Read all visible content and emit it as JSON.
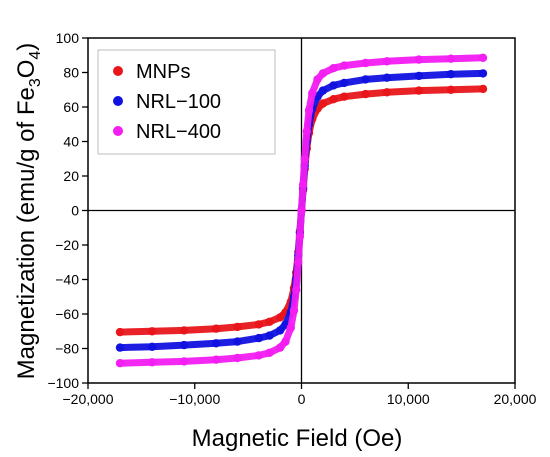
{
  "chart_data": {
    "type": "scatter",
    "title": "",
    "xlabel": "Magnetic Field (Oe)",
    "ylabel": {
      "prefix": "Magnetization (emu/g of Fe",
      "sub1": "3",
      "mid": "O",
      "sub2": "4",
      "suffix": ")"
    },
    "xlim": [
      -20000,
      20000
    ],
    "ylim": [
      -100,
      100
    ],
    "x_ticks": [
      -20000,
      -10000,
      0,
      10000,
      20000
    ],
    "x_tick_labels": [
      "−20,000",
      "−10,000",
      "0",
      "10,000",
      "20,000"
    ],
    "y_ticks": [
      -100,
      -80,
      -60,
      -40,
      -20,
      0,
      20,
      40,
      60,
      80,
      100
    ],
    "y_tick_labels": [
      "−100",
      "−80",
      "−60",
      "−40",
      "−20",
      "0",
      "20",
      "40",
      "60",
      "80",
      "100"
    ],
    "zero_lines": true,
    "grid": false,
    "legend_position": "top-left",
    "series": [
      {
        "name": "MNPs",
        "color": "#e8161b",
        "x": [
          -17000,
          -14000,
          -11000,
          -8000,
          -6000,
          -4000,
          -3000,
          -2000,
          -1500,
          -1000,
          -700,
          -500,
          -300,
          -150,
          0,
          150,
          300,
          500,
          700,
          1000,
          1500,
          2000,
          3000,
          4000,
          6000,
          8000,
          11000,
          14000,
          17000
        ],
        "y": [
          -70.5,
          -70,
          -69.5,
          -68.5,
          -67.5,
          -66,
          -64.5,
          -62,
          -59,
          -53,
          -45,
          -36,
          -24,
          -12,
          0,
          12,
          24,
          36,
          45,
          53,
          59,
          62,
          64.5,
          66,
          67.5,
          68.5,
          69.5,
          70,
          70.5
        ]
      },
      {
        "name": "NRL−100",
        "color": "#1212e0",
        "x": [
          -17000,
          -14000,
          -11000,
          -8000,
          -6000,
          -4000,
          -3000,
          -2000,
          -1500,
          -1000,
          -700,
          -500,
          -300,
          -150,
          0,
          150,
          300,
          500,
          700,
          1000,
          1500,
          2000,
          3000,
          4000,
          6000,
          8000,
          11000,
          14000,
          17000
        ],
        "y": [
          -79.5,
          -79,
          -78,
          -77,
          -76,
          -74,
          -72.5,
          -69.5,
          -66,
          -59,
          -50,
          -40,
          -26,
          -13,
          0,
          13,
          26,
          40,
          50,
          59,
          66,
          69.5,
          72.5,
          74,
          76,
          77,
          78,
          79,
          79.5
        ]
      },
      {
        "name": "NRL−400",
        "color": "#f21ef2",
        "x": [
          -17000,
          -14000,
          -11000,
          -8000,
          -6000,
          -4000,
          -3000,
          -2000,
          -1500,
          -1000,
          -700,
          -500,
          -300,
          -150,
          0,
          150,
          300,
          500,
          700,
          1000,
          1500,
          2000,
          3000,
          4000,
          6000,
          8000,
          11000,
          14000,
          17000
        ],
        "y": [
          -88.5,
          -88,
          -87.5,
          -86.5,
          -85.5,
          -84,
          -82.5,
          -79.5,
          -76,
          -68,
          -58,
          -46,
          -30,
          -15,
          0,
          15,
          30,
          46,
          58,
          68,
          76,
          79.5,
          82.5,
          84,
          85.5,
          86.5,
          87.5,
          88,
          88.5
        ]
      }
    ]
  }
}
